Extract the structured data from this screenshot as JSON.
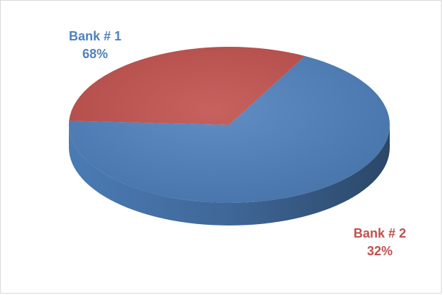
{
  "chart_data": {
    "type": "pie",
    "style": "3d",
    "title": "",
    "categories": [
      "Bank # 1",
      "Bank # 2"
    ],
    "values": [
      68,
      32
    ],
    "value_labels": [
      "68%",
      "32%"
    ],
    "colors": [
      "#4f81bd",
      "#c0504d"
    ],
    "legend": "none",
    "data_labels": "outside"
  }
}
